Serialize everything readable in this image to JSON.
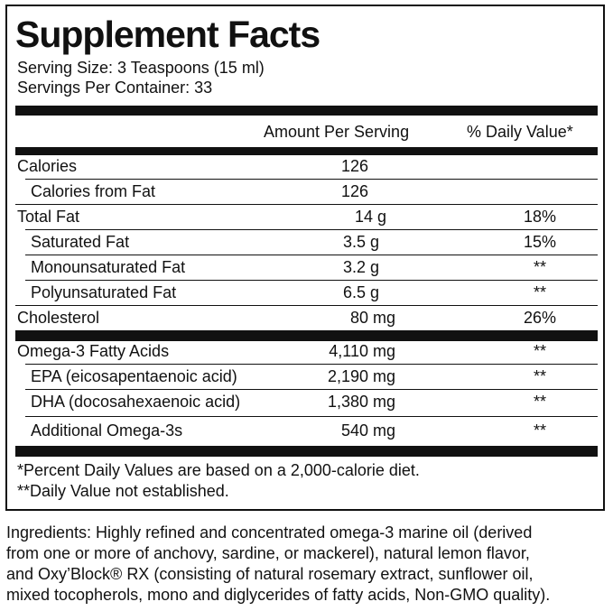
{
  "header": {
    "title": "Supplement Facts",
    "serving_size": "Serving Size: 3 Teaspoons (15 ml)",
    "servings_per_container": "Servings Per Container: 33"
  },
  "table": {
    "columns": [
      "Amount Per Serving",
      "% Daily Value*"
    ],
    "rows": [
      {
        "name": "Calories",
        "amount": "126"
      },
      {
        "name": "Calories from Fat",
        "amount": "126"
      },
      {
        "name": "Total Fat",
        "amount": "14 g",
        "daily_value": "18%"
      },
      {
        "name": "Saturated Fat",
        "amount": "3.5 g",
        "daily_value": "15%"
      },
      {
        "name": "Monounsaturated Fat",
        "amount": "3.2 g",
        "daily_value": "**"
      },
      {
        "name": "Polyunsaturated Fat",
        "amount": "6.5 g",
        "daily_value": "**"
      },
      {
        "name": "Cholesterol",
        "amount": "80 mg",
        "daily_value": "26%"
      },
      {
        "name": "Omega-3 Fatty Acids",
        "amount": "4,110 mg",
        "daily_value": "**"
      },
      {
        "name": "EPA (eicosapentaenoic acid)",
        "amount": "2,190 mg",
        "daily_value": "**"
      },
      {
        "name": "DHA (docosahexaenoic acid)",
        "amount": "1,380 mg",
        "daily_value": "**"
      },
      {
        "name": "Additional Omega-3s",
        "amount": "540 mg",
        "daily_value": "**"
      }
    ]
  },
  "footnotes": [
    "*Percent Daily Values are based on a 2,000-calorie diet.",
    "**Daily Value not established."
  ],
  "ingredients": [
    "Ingredients: Highly refined and concentrated omega-3 marine oil (derived",
    "from one or more of anchovy, sardine, or mackerel), natural lemon flavor,",
    "and Oxy’Block® RX (consisting of natural rosemary extract, sunflower oil,",
    "mixed tocopherols, mono and diglycerides of fatty acids, Non-GMO quality)."
  ]
}
